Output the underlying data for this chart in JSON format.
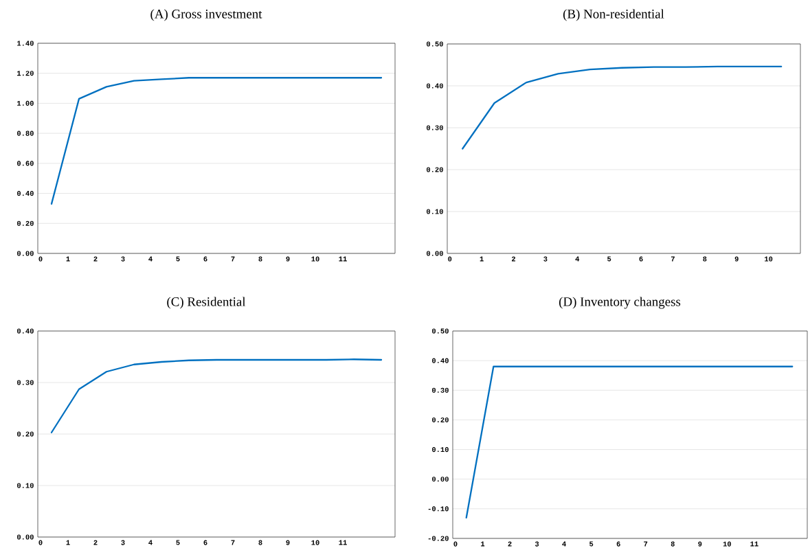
{
  "chart_data": [
    {
      "type": "line",
      "title": "(A)  Gross investment",
      "x": [
        0.4,
        1.4,
        2.4,
        3.4,
        4.4,
        5.4,
        6.4,
        7.4,
        8.4,
        9.4,
        10.4,
        11.4,
        12.4
      ],
      "series": [
        {
          "color": "#0070c0",
          "values": [
            0.33,
            1.03,
            1.11,
            1.15,
            1.16,
            1.17,
            1.17,
            1.17,
            1.17,
            1.17,
            1.17,
            1.17,
            1.17
          ]
        }
      ],
      "xlim": [
        -0.1,
        12.9
      ],
      "ylim": [
        0,
        1.4
      ],
      "xticks": [
        0,
        1,
        2,
        3,
        4,
        5,
        6,
        7,
        8,
        9,
        10,
        11
      ],
      "yticks": [
        {
          "value": 0,
          "label": "0.00"
        },
        {
          "value": 0.2,
          "label": "0.20"
        },
        {
          "value": 0.4,
          "label": "0.40"
        },
        {
          "value": 0.6,
          "label": "0.60"
        },
        {
          "value": 0.8,
          "label": "0.80"
        },
        {
          "value": 1.0,
          "label": "1.00"
        },
        {
          "value": 1.2,
          "label": "1.20"
        },
        {
          "value": 1.4,
          "label": "1.40"
        }
      ],
      "grid": "y"
    },
    {
      "type": "line",
      "title": "(B)  Non-residential",
      "x": [
        0.4,
        1.4,
        2.4,
        3.4,
        4.4,
        5.4,
        6.4,
        7.4,
        8.4,
        9.4,
        10.4
      ],
      "series": [
        {
          "color": "#0070c0",
          "values": [
            0.25,
            0.359,
            0.408,
            0.429,
            0.439,
            0.443,
            0.445,
            0.445,
            0.446,
            0.446,
            0.446
          ]
        }
      ],
      "xlim": [
        -0.08,
        11.0
      ],
      "ylim": [
        0,
        0.5
      ],
      "xticks": [
        0,
        1,
        2,
        3,
        4,
        5,
        6,
        7,
        8,
        9,
        10
      ],
      "yticks": [
        {
          "value": 0,
          "label": "0.00"
        },
        {
          "value": 0.1,
          "label": "0.10"
        },
        {
          "value": 0.2,
          "label": "0.20"
        },
        {
          "value": 0.3,
          "label": "0.30"
        },
        {
          "value": 0.4,
          "label": "0.40"
        },
        {
          "value": 0.5,
          "label": "0.50"
        }
      ],
      "grid": "y"
    },
    {
      "type": "line",
      "title": "(C)  Residential",
      "x": [
        0.4,
        1.4,
        2.4,
        3.4,
        4.4,
        5.4,
        6.4,
        7.4,
        8.4,
        9.4,
        10.4,
        11.4,
        12.4
      ],
      "series": [
        {
          "color": "#0070c0",
          "values": [
            0.203,
            0.287,
            0.321,
            0.335,
            0.34,
            0.343,
            0.344,
            0.344,
            0.344,
            0.344,
            0.344,
            0.345,
            0.344
          ]
        }
      ],
      "xlim": [
        -0.1,
        12.9
      ],
      "ylim": [
        0,
        0.4
      ],
      "xticks": [
        0,
        1,
        2,
        3,
        4,
        5,
        6,
        7,
        8,
        9,
        10,
        11
      ],
      "yticks": [
        {
          "value": 0,
          "label": "0.00"
        },
        {
          "value": 0.1,
          "label": "0.10"
        },
        {
          "value": 0.2,
          "label": "0.20"
        },
        {
          "value": 0.3,
          "label": "0.30"
        },
        {
          "value": 0.4,
          "label": "0.40"
        }
      ],
      "grid": "y"
    },
    {
      "type": "line",
      "title": "(D)  Inventory changess",
      "x": [
        0.4,
        1.4,
        2.4,
        3.4,
        4.4,
        5.4,
        6.4,
        7.4,
        8.4,
        9.4,
        10.4,
        11.4,
        12.4
      ],
      "series": [
        {
          "color": "#0070c0",
          "values": [
            -0.13,
            0.38,
            0.38,
            0.38,
            0.38,
            0.38,
            0.38,
            0.38,
            0.38,
            0.38,
            0.38,
            0.38,
            0.38
          ]
        }
      ],
      "xlim": [
        -0.1,
        12.95
      ],
      "ylim": [
        -0.2,
        0.5
      ],
      "xticks": [
        0,
        1,
        2,
        3,
        4,
        5,
        6,
        7,
        8,
        9,
        10,
        11
      ],
      "yticks": [
        {
          "value": -0.2,
          "label": "-0.20"
        },
        {
          "value": -0.1,
          "label": "-0.10"
        },
        {
          "value": 0,
          "label": "0.00"
        },
        {
          "value": 0.1,
          "label": "0.10"
        },
        {
          "value": 0.2,
          "label": "0.20"
        },
        {
          "value": 0.3,
          "label": "0.30"
        },
        {
          "value": 0.4,
          "label": "0.40"
        },
        {
          "value": 0.5,
          "label": "0.50"
        }
      ],
      "grid": "y"
    }
  ]
}
